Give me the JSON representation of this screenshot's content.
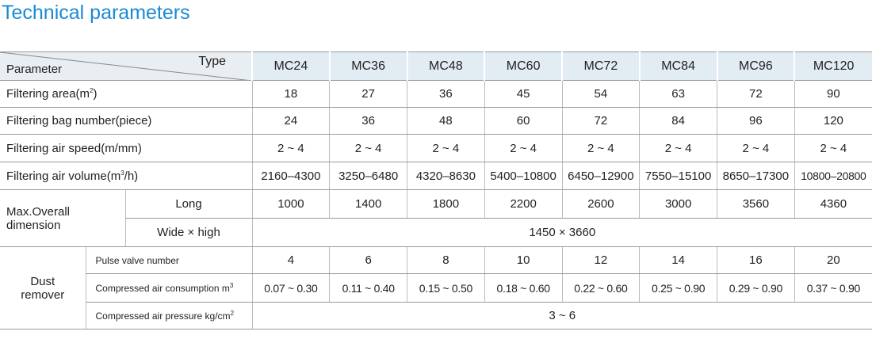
{
  "title": "Technical parameters",
  "table": {
    "corner": {
      "row_label": "Parameter",
      "col_label": "Type"
    },
    "models": [
      "MC24",
      "MC36",
      "MC48",
      "MC60",
      "MC72",
      "MC84",
      "MC96",
      "MC120"
    ],
    "rows": [
      {
        "label": {
          "text": "Filtering area(m",
          "sup": "2",
          "end": ")"
        },
        "values": [
          18,
          27,
          36,
          45,
          54,
          63,
          72,
          90
        ]
      },
      {
        "label": {
          "text": "Filtering bag number(piece)"
        },
        "values": [
          24,
          36,
          48,
          60,
          72,
          84,
          96,
          120
        ]
      },
      {
        "label": {
          "text": "Filtering air speed(m/mm)"
        },
        "values": [
          "2 ~ 4",
          "2 ~ 4",
          "2 ~ 4",
          "2 ~ 4",
          "2 ~ 4",
          "2 ~ 4",
          "2 ~ 4",
          "2 ~ 4"
        ]
      },
      {
        "label": {
          "text": "Filtering air volume(m",
          "sup": "3",
          "end": "/h)"
        },
        "values": [
          "2160–4300",
          "3250–6480",
          "4320–8630",
          "5400–10800",
          "6450–12900",
          "7550–15100",
          "8650–17300",
          "10800–20800"
        ]
      }
    ],
    "dimension": {
      "label": "Max.Overall dimension",
      "long": {
        "label": "Long",
        "values": [
          1000,
          1400,
          1800,
          2200,
          2600,
          3000,
          3560,
          4360
        ]
      },
      "wide_high": {
        "label": "Wide × high",
        "value": "1450 × 3660"
      }
    },
    "dust_remover": {
      "label": "Dust remover",
      "pulse": {
        "label": {
          "text": "Pulse valve number"
        },
        "values": [
          4,
          6,
          8,
          10,
          12,
          14,
          16,
          20
        ]
      },
      "consumption": {
        "label": {
          "text": "Compressed air consumption m",
          "sup": "3"
        },
        "values": [
          "0.07 ~ 0.30",
          "0.11 ~ 0.40",
          "0.15 ~ 0.50",
          "0.18 ~ 0.60",
          "0.22 ~ 0.60",
          "0.25 ~ 0.90",
          "0.29 ~ 0.90",
          "0.37 ~ 0.90"
        ]
      },
      "pressure": {
        "label": {
          "text": "Compressed air pressure kg/cm",
          "sup": "2"
        },
        "value": "3 ~ 6"
      }
    }
  }
}
